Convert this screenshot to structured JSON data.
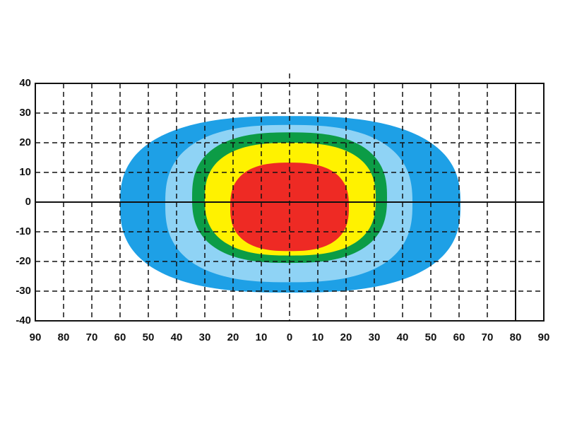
{
  "chart_data": {
    "type": "contour",
    "xlim": [
      -90,
      90
    ],
    "ylim": [
      -40,
      40
    ],
    "xticks": [
      {
        "value": -90,
        "label": "90"
      },
      {
        "value": -80,
        "label": "80"
      },
      {
        "value": -70,
        "label": "70"
      },
      {
        "value": -60,
        "label": "60"
      },
      {
        "value": -50,
        "label": "50"
      },
      {
        "value": -40,
        "label": "40"
      },
      {
        "value": -30,
        "label": "30"
      },
      {
        "value": -20,
        "label": "20"
      },
      {
        "value": -10,
        "label": "10"
      },
      0,
      10,
      20,
      30,
      40,
      50,
      60,
      70,
      80,
      90
    ],
    "yticks": [
      -40,
      -30,
      -20,
      -10,
      0,
      10,
      20,
      30,
      40
    ],
    "grid": true,
    "zones": [
      {
        "color": "#1ea0e6",
        "xrange": [
          -60,
          60.5
        ],
        "yrange": [
          -30.5,
          29
        ]
      },
      {
        "color": "#8fd3f5",
        "xrange": [
          -44,
          43.5
        ],
        "yrange": [
          -27,
          26
        ]
      },
      {
        "color": "#0c9c46",
        "xrange": [
          -34.5,
          34.5
        ],
        "yrange": [
          -20.5,
          23.5
        ]
      },
      {
        "color": "#fff200",
        "xrange": [
          -30,
          30.5
        ],
        "yrange": [
          -18,
          20
        ]
      },
      {
        "color": "#ee2a24",
        "xrange": [
          -21,
          21
        ],
        "yrange": [
          -16.5,
          13.3
        ]
      }
    ]
  }
}
